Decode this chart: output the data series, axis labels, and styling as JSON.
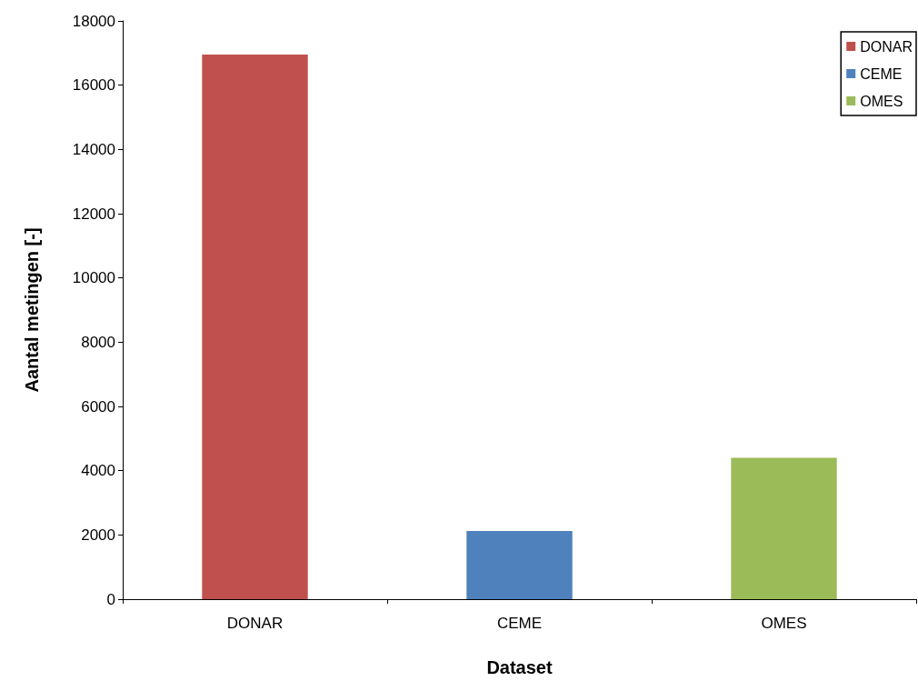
{
  "chart_data": {
    "type": "bar",
    "xlabel": "Dataset",
    "ylabel": "Aantal metingen [-]",
    "categories": [
      "DONAR",
      "CEME",
      "OMES"
    ],
    "series": [
      {
        "name": "DONAR",
        "color": "#c0504d",
        "values": [
          16950,
          null,
          null
        ]
      },
      {
        "name": "CEME",
        "color": "#4f81bd",
        "values": [
          null,
          2120,
          null
        ]
      },
      {
        "name": "OMES",
        "color": "#9bbb59",
        "values": [
          null,
          null,
          4400
        ]
      }
    ],
    "ylim": [
      0,
      18000
    ],
    "yticks": [
      0,
      2000,
      4000,
      6000,
      8000,
      10000,
      12000,
      14000,
      16000,
      18000
    ],
    "grid": false,
    "legend": "top right"
  }
}
